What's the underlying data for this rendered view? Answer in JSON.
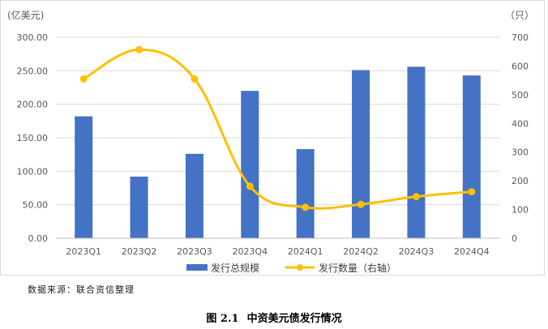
{
  "chart_data": {
    "type": "bar",
    "categories": [
      "2023Q1",
      "2023Q2",
      "2023Q3",
      "2023Q4",
      "2024Q1",
      "2024Q2",
      "2024Q3",
      "2024Q4"
    ],
    "series": [
      {
        "name": "发行总规模",
        "type": "bar",
        "axis": "left",
        "color": "#4472C4",
        "values": [
          182,
          92,
          126,
          220,
          133,
          251,
          256,
          243
        ]
      },
      {
        "name": "发行数量（右轴）",
        "type": "line",
        "axis": "right",
        "color": "#FFC000",
        "values": [
          555,
          657,
          555,
          181,
          108,
          118,
          145,
          162
        ]
      }
    ],
    "left_axis": {
      "unit": "(亿美元)",
      "ylim": [
        0,
        300
      ],
      "ticks": [
        "0.00",
        "50.00",
        "100.00",
        "150.00",
        "200.00",
        "250.00",
        "300.00"
      ]
    },
    "right_axis": {
      "unit": "（只）",
      "ylim": [
        0,
        700
      ],
      "ticks": [
        "0",
        "100",
        "200",
        "300",
        "400",
        "500",
        "600",
        "700"
      ]
    },
    "grid": true,
    "legend_position": "bottom"
  },
  "source_note": "数据来源：联合资信整理",
  "caption": {
    "number": "图 2.1",
    "title": "中资美元债发行情况"
  }
}
